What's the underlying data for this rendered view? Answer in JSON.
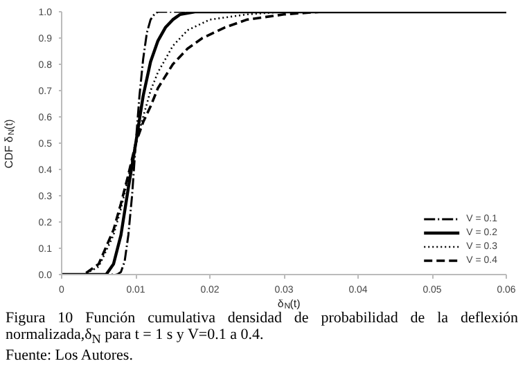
{
  "chart_data": {
    "type": "line",
    "xlabel": "δ$_{N}$(t)",
    "ylabel": "CDF δ$_{N}$(t)",
    "xlim": [
      0,
      0.06
    ],
    "ylim": [
      0,
      1
    ],
    "xticks": [
      0,
      0.01,
      0.02,
      0.03,
      0.04,
      0.05,
      0.06
    ],
    "yticks": [
      {
        "value": 0,
        "label": "0.0"
      },
      0.1,
      0.2,
      0.3,
      0.4,
      0.5,
      0.6,
      0.7,
      0.8,
      0.9,
      {
        "value": 1,
        "label": "1.0"
      }
    ],
    "grid": false,
    "legend": "bottom right",
    "series": [
      {
        "name": "V = 0.1",
        "color": "#000000",
        "line_style": "dashdot",
        "x": [
          0,
          0.0075,
          0.008,
          0.0085,
          0.009,
          0.0095,
          0.01,
          0.0105,
          0.011,
          0.0115,
          0.012,
          0.0125,
          0.013,
          0.014,
          0.06
        ],
        "values": [
          0,
          0,
          0.01,
          0.05,
          0.15,
          0.3,
          0.5,
          0.68,
          0.82,
          0.92,
          0.97,
          0.99,
          1.0,
          1.0,
          1.0
        ]
      },
      {
        "name": "V = 0.2",
        "color": "#000000",
        "line_style": "solid",
        "x": [
          0,
          0.006,
          0.007,
          0.008,
          0.009,
          0.01,
          0.011,
          0.012,
          0.013,
          0.014,
          0.015,
          0.016,
          0.018,
          0.02,
          0.06
        ],
        "values": [
          0,
          0,
          0.04,
          0.15,
          0.33,
          0.5,
          0.68,
          0.81,
          0.89,
          0.94,
          0.97,
          0.99,
          1.0,
          1.0,
          1.0
        ]
      },
      {
        "name": "V = 0.3",
        "color": "#000000",
        "line_style": "dotted",
        "x": [
          0,
          0.003,
          0.005,
          0.007,
          0.008,
          0.009,
          0.01,
          0.011,
          0.012,
          0.013,
          0.015,
          0.017,
          0.02,
          0.025,
          0.03,
          0.035,
          0.06
        ],
        "values": [
          0,
          0,
          0.03,
          0.15,
          0.25,
          0.37,
          0.5,
          0.6,
          0.7,
          0.77,
          0.87,
          0.93,
          0.97,
          0.99,
          1.0,
          1.0,
          1.0
        ]
      },
      {
        "name": "V = 0.4",
        "color": "#000000",
        "line_style": "dashed",
        "x": [
          0,
          0.003,
          0.005,
          0.007,
          0.008,
          0.009,
          0.01,
          0.011,
          0.012,
          0.013,
          0.015,
          0.017,
          0.019,
          0.022,
          0.025,
          0.03,
          0.035,
          0.06
        ],
        "values": [
          0,
          0,
          0.04,
          0.17,
          0.27,
          0.38,
          0.5,
          0.58,
          0.64,
          0.71,
          0.8,
          0.86,
          0.9,
          0.94,
          0.97,
          0.99,
          1.0,
          1.0
        ]
      }
    ],
    "annotations": [
      "Figura 10 Función cumulativa densidad de probabilidad de la deflexión normalizada,δ$_{N}$ para t = 1 s y V=0.1 a 0.4.",
      "Fuente: Los Autores."
    ]
  }
}
